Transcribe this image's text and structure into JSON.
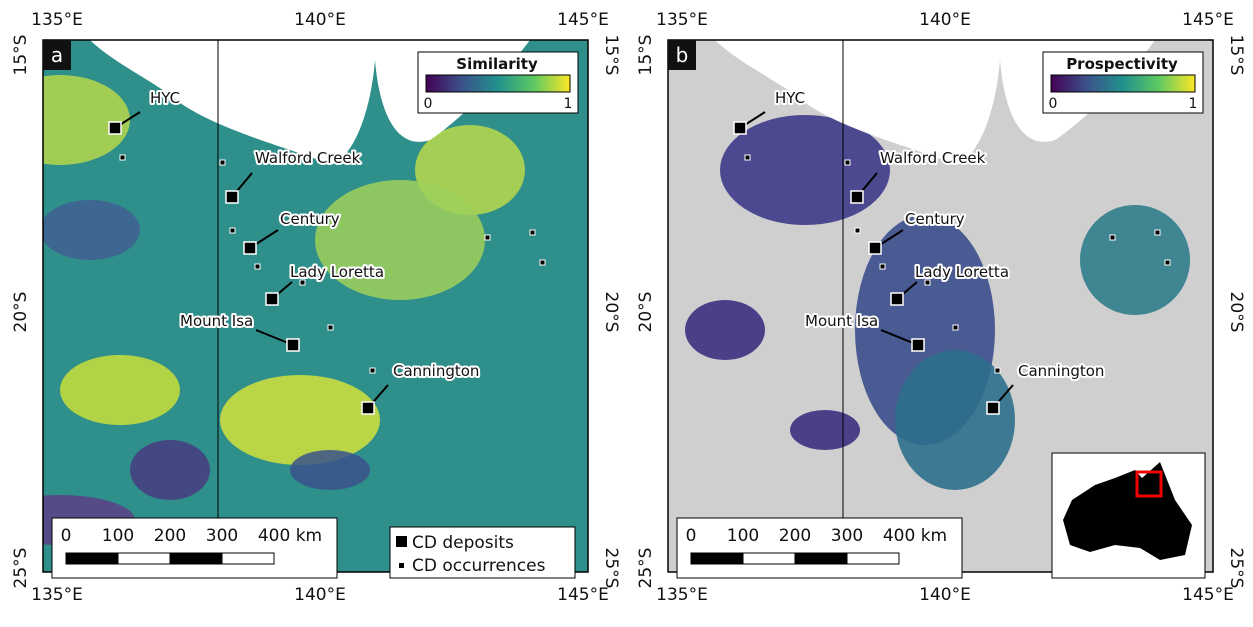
{
  "panels": [
    {
      "label": "a",
      "colorbar": {
        "title": "Similarity",
        "min": "0",
        "max": "1"
      },
      "lon_labels": [
        "135°E",
        "140°E",
        "145°E"
      ],
      "lat_labels": [
        "15°S",
        "20°S",
        "25°S"
      ],
      "deposits": [
        "HYC",
        "Walford Creek",
        "Century",
        "Lady Loretta",
        "Mount Isa",
        "Cannington"
      ],
      "scale_bar": [
        "0",
        "100",
        "200",
        "300",
        "400 km"
      ],
      "legend": [
        "CD deposits",
        "CD occurrences"
      ]
    },
    {
      "label": "b",
      "colorbar": {
        "title": "Prospectivity",
        "min": "0",
        "max": "1"
      },
      "lon_labels": [
        "135°E",
        "140°E",
        "145°E"
      ],
      "lat_labels": [
        "15°S",
        "20°S",
        "25°S"
      ],
      "deposits": [
        "HYC",
        "Walford Creek",
        "Century",
        "Lady Loretta",
        "Mount Isa",
        "Cannington"
      ],
      "scale_bar": [
        "0",
        "100",
        "200",
        "300",
        "400 km"
      ]
    }
  ]
}
